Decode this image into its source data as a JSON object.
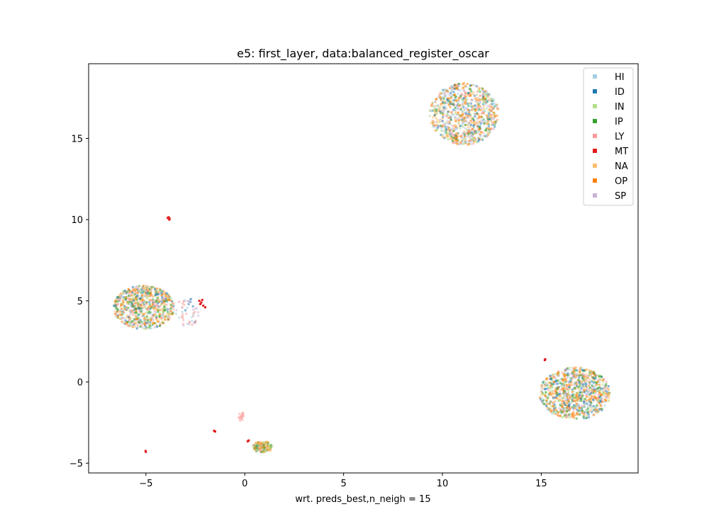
{
  "chart_data": {
    "type": "scatter",
    "title": "e5: first_layer, data:balanced_register_oscar",
    "xlabel": "wrt. preds_best,n_neigh = 15",
    "ylabel": "",
    "xlim": [
      -7.9,
      19.9
    ],
    "ylim": [
      -5.6,
      19.6
    ],
    "xticks": [
      -5,
      0,
      5,
      10,
      15
    ],
    "yticks": [
      -5,
      0,
      5,
      10,
      15
    ],
    "grid": false,
    "legend_position": "top-right",
    "series": [
      {
        "name": "HI",
        "color": "#a6cee3"
      },
      {
        "name": "ID",
        "color": "#1f78b4"
      },
      {
        "name": "IN",
        "color": "#b2df8a"
      },
      {
        "name": "IP",
        "color": "#33a02c"
      },
      {
        "name": "LY",
        "color": "#fb9a99"
      },
      {
        "name": "MT",
        "color": "#e31a1c"
      },
      {
        "name": "NA",
        "color": "#fdbf6f"
      },
      {
        "name": "OP",
        "color": "#ff7f00"
      },
      {
        "name": "SP",
        "color": "#cab2d6"
      }
    ],
    "clusters": [
      {
        "cx": 11.1,
        "cy": 16.5,
        "rx": 1.75,
        "ry": 1.9,
        "n": 900,
        "mix": [
          0.16,
          0.1,
          0.1,
          0.1,
          0.08,
          0,
          0.16,
          0.2,
          0.1
        ]
      },
      {
        "cx": 16.7,
        "cy": -0.7,
        "rx": 1.8,
        "ry": 1.6,
        "n": 900,
        "mix": [
          0.12,
          0.12,
          0.12,
          0.16,
          0.08,
          0,
          0.12,
          0.2,
          0.08
        ]
      },
      {
        "cx": -5.1,
        "cy": 4.6,
        "rx": 1.55,
        "ry": 1.35,
        "n": 750,
        "mix": [
          0.1,
          0.12,
          0.1,
          0.14,
          0.12,
          0,
          0.18,
          0.16,
          0.08
        ]
      },
      {
        "cx": -2.9,
        "cy": 4.3,
        "rx": 0.6,
        "ry": 0.9,
        "n": 50,
        "mix": [
          0.3,
          0.1,
          0,
          0,
          0.4,
          0,
          0,
          0,
          0.2
        ]
      },
      {
        "cx": 0.9,
        "cy": -4.0,
        "rx": 0.5,
        "ry": 0.35,
        "n": 130,
        "mix": [
          0.05,
          0.05,
          0.2,
          0.2,
          0.1,
          0,
          0.15,
          0.25,
          0
        ]
      },
      {
        "cx": -0.2,
        "cy": -2.1,
        "rx": 0.15,
        "ry": 0.3,
        "n": 15,
        "mix": [
          0,
          0,
          0,
          0,
          1,
          0,
          0,
          0,
          0
        ]
      }
    ],
    "mt_points": [
      [
        -3.85,
        10.15
      ],
      [
        -3.8,
        10.05
      ],
      [
        -3.9,
        10.1
      ],
      [
        -3.82,
        10.0
      ],
      [
        -2.3,
        5.0
      ],
      [
        -2.2,
        4.9
      ],
      [
        -2.1,
        4.7
      ],
      [
        -2.0,
        4.6
      ],
      [
        -2.25,
        4.8
      ],
      [
        -2.15,
        5.05
      ],
      [
        -1.55,
        -3.0
      ],
      [
        -1.5,
        -3.05
      ],
      [
        -5.0,
        -4.3
      ],
      [
        -5.02,
        -4.25
      ],
      [
        15.2,
        1.4
      ],
      [
        15.18,
        1.35
      ],
      [
        0.15,
        -3.65
      ],
      [
        0.2,
        -3.6
      ]
    ]
  }
}
